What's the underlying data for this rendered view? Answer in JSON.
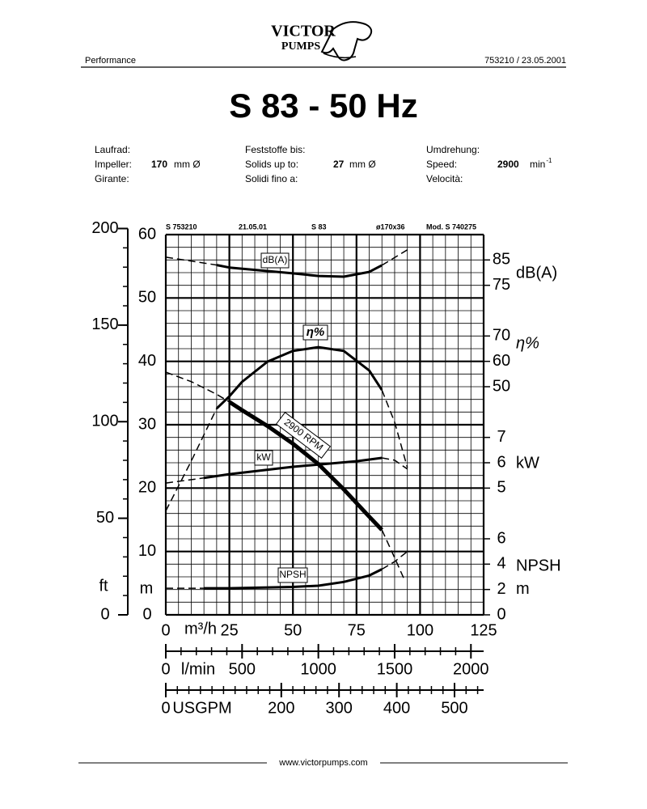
{
  "header": {
    "logo": [
      "VICTOR",
      "PUMPS"
    ],
    "left": "Performance",
    "right": "753210 / 23.05.2001"
  },
  "title": "S 83 - 50 Hz",
  "specs": [
    {
      "labels": [
        "Laufrad:",
        "Impeller:",
        "Girante:"
      ],
      "value": 170,
      "unit": "mm Ø"
    },
    {
      "labels": [
        "Feststoffe bis:",
        "Solids up to:",
        "Solidi fino a:"
      ],
      "value": 27,
      "unit": "mm Ø"
    },
    {
      "labels": [
        "Umdrehung:",
        "Speed:",
        "Velocità:"
      ],
      "value": 2900,
      "unit": "min",
      "unit_sup": "-1"
    }
  ],
  "chart_data": {
    "type": "line",
    "header_codes": [
      "S 753210",
      "21.05.01",
      "S 83",
      "ø170x36",
      "Mod. S 740275"
    ],
    "xlabel": "m³/h",
    "xlim": [
      0,
      125
    ],
    "xticks": [
      0,
      25,
      50,
      75,
      100,
      125
    ],
    "ylabel": "m",
    "ylim": [
      0,
      60
    ],
    "yticks": [
      0,
      10,
      20,
      30,
      40,
      50,
      60
    ],
    "grid": true,
    "grid_minor": {
      "x": 5,
      "y": 2
    },
    "ft_axis": {
      "label": "ft",
      "lim": [
        0,
        196.85
      ],
      "ticks": [
        0,
        50,
        100,
        150,
        200
      ],
      "minor": 10
    },
    "x2_axis": {
      "label": "l/min",
      "lim": [
        0,
        2083.33
      ],
      "ticks": [
        0,
        500,
        1000,
        1500,
        2000
      ],
      "minor": 100
    },
    "x3_axis": {
      "label": "USGPM",
      "lim": [
        0,
        550.4
      ],
      "ticks": [
        0,
        200,
        300,
        400,
        500
      ],
      "minor": 20
    },
    "right_axes": [
      {
        "id": "db",
        "label": "dB(A)",
        "lim": [
          -55,
          95
        ],
        "ticks": [
          75,
          85
        ]
      },
      {
        "id": "eta",
        "label": "η%",
        "lim": [
          -40,
          110
        ],
        "ticks": [
          50,
          60,
          70
        ]
      },
      {
        "id": "kw",
        "label": "kW",
        "lim": [
          0,
          15
        ],
        "ticks": [
          5,
          6,
          7
        ]
      },
      {
        "id": "npsh",
        "label": "NPSH",
        "unit": "m",
        "lim": [
          0,
          30
        ],
        "ticks": [
          0,
          2,
          4,
          6
        ]
      }
    ],
    "series": [
      {
        "name": "dB(A)",
        "axis": "db",
        "line_width": 3,
        "solid_x": [
          20,
          85
        ],
        "x": [
          0,
          20,
          25,
          50,
          60,
          70,
          80,
          85,
          95
        ],
        "values": [
          86.1,
          83.0,
          82.0,
          79.7,
          78.7,
          78.4,
          80.3,
          82.9,
          89.0
        ]
      },
      {
        "name": "η%",
        "axis": "eta",
        "line_width": 3,
        "solid_x": [
          20,
          85
        ],
        "x": [
          0,
          10,
          20,
          25,
          30,
          40,
          50,
          60,
          70,
          80,
          85,
          90,
          95
        ],
        "values": [
          1,
          20.6,
          41.4,
          46.2,
          51.9,
          59.9,
          64.1,
          65.6,
          64.1,
          56.4,
          48.7,
          36,
          18.1
        ]
      },
      {
        "name": "2900 RPM",
        "axis": "y",
        "line_width": 5,
        "solid_x": [
          25,
          85
        ],
        "x": [
          0,
          10,
          20,
          25,
          30,
          40,
          50,
          60,
          70,
          80,
          85,
          90,
          94
        ],
        "values": [
          38.3,
          36.8,
          34.8,
          33.6,
          32.3,
          29.8,
          27.0,
          23.8,
          19.8,
          15.5,
          13.4,
          9.0,
          5.4
        ]
      },
      {
        "name": "kW",
        "axis": "kw",
        "line_width": 3,
        "solid_x": [
          15,
          85
        ],
        "x": [
          0,
          15,
          25,
          50,
          75,
          85,
          90,
          95
        ],
        "values": [
          5.2,
          5.4,
          5.55,
          5.84,
          6.06,
          6.19,
          6.1,
          5.75
        ]
      },
      {
        "name": "NPSH",
        "axis": "npsh",
        "line_width": 3,
        "solid_x": [
          15,
          85
        ],
        "x": [
          0,
          15,
          25,
          50,
          60,
          70,
          80,
          85,
          90,
          95
        ],
        "values": [
          2.1,
          2.1,
          2.1,
          2.2,
          2.3,
          2.6,
          3.1,
          3.6,
          4.2,
          5.0
        ]
      }
    ]
  },
  "footer": "www.victorpumps.com"
}
